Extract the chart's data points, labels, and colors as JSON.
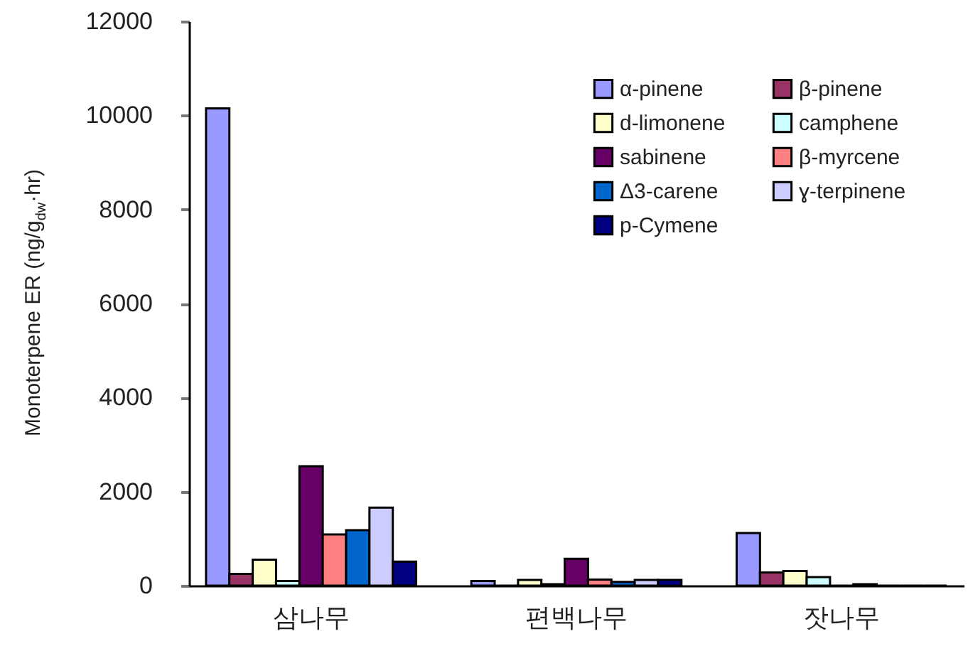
{
  "chart_data": {
    "type": "bar",
    "ylabel": "Monoterpene ER (ng/g$_{dw}$·hr)",
    "categories": [
      "삼나무",
      "편백나무",
      "잣나무"
    ],
    "series": [
      {
        "name": "α-pinene",
        "color": "#9999ff",
        "values": [
          10150,
          100,
          1120
        ]
      },
      {
        "name": "β-pinene",
        "color": "#993366",
        "values": [
          250,
          0,
          280
        ]
      },
      {
        "name": "d-limonene",
        "color": "#ffffcc",
        "values": [
          550,
          120,
          310
        ]
      },
      {
        "name": "camphene",
        "color": "#ccffff",
        "values": [
          100,
          30,
          180
        ]
      },
      {
        "name": "sabinene",
        "color": "#660066",
        "values": [
          2540,
          570,
          0
        ]
      },
      {
        "name": "β-myrcene",
        "color": "#ff8080",
        "values": [
          1090,
          130,
          30
        ]
      },
      {
        "name": "Δ3-carene",
        "color": "#0066cc",
        "values": [
          1180,
          80,
          0
        ]
      },
      {
        "name": "ɣ-terpinene",
        "color": "#ccccff",
        "values": [
          1660,
          120,
          0
        ]
      },
      {
        "name": "p-Cymene",
        "color": "#000080",
        "values": [
          510,
          120,
          0
        ]
      }
    ],
    "ylim": [
      0,
      12000
    ],
    "yticks": [
      0,
      2000,
      4000,
      6000,
      8000,
      10000,
      12000
    ],
    "grid": false,
    "legend": "top right"
  }
}
